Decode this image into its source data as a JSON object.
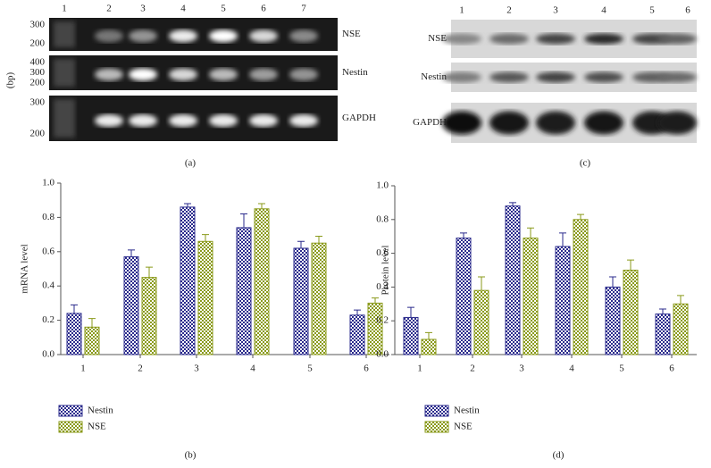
{
  "gel_a": {
    "lanes": [
      "1",
      "2",
      "3",
      "4",
      "5",
      "6",
      "7"
    ],
    "rows": [
      "NSE",
      "Nestin",
      "GAPDH"
    ],
    "markers": [
      [
        "300",
        "200"
      ],
      [
        "400",
        "300",
        "200"
      ],
      [
        "300",
        "200"
      ]
    ],
    "axis_label": "(bp)",
    "caption": "(a)"
  },
  "blot_c": {
    "lanes": [
      "1",
      "2",
      "3",
      "4",
      "5",
      "6"
    ],
    "rows": [
      "NSE",
      "Nestin",
      "GAPDH"
    ],
    "caption": "(c)"
  },
  "chart_data": [
    {
      "type": "bar",
      "ylabel": "mRNA level",
      "caption": "(b)",
      "categories": [
        "1",
        "2",
        "3",
        "4",
        "5",
        "6"
      ],
      "series": [
        {
          "name": "Nestin",
          "color": "#2b2b8c",
          "values": [
            0.24,
            0.57,
            0.86,
            0.74,
            0.62,
            0.23
          ],
          "errors": [
            0.05,
            0.04,
            0.02,
            0.08,
            0.04,
            0.03
          ]
        },
        {
          "name": "NSE",
          "color": "#8a9a1a",
          "values": [
            0.16,
            0.45,
            0.66,
            0.85,
            0.65,
            0.3
          ],
          "errors": [
            0.05,
            0.06,
            0.04,
            0.03,
            0.04,
            0.03
          ]
        }
      ],
      "ylim": [
        0,
        1
      ],
      "yticks": [
        {
          "value": 0,
          "label": "0.0"
        },
        0.2,
        0.4,
        0.6,
        0.8,
        {
          "value": 1,
          "label": "1.0"
        }
      ]
    },
    {
      "type": "bar",
      "ylabel": "Protein level",
      "caption": "(d)",
      "categories": [
        "1",
        "2",
        "3",
        "4",
        "5",
        "6"
      ],
      "series": [
        {
          "name": "Nestin",
          "color": "#2b2b8c",
          "values": [
            0.22,
            0.69,
            0.88,
            0.64,
            0.4,
            0.24
          ],
          "errors": [
            0.06,
            0.03,
            0.02,
            0.08,
            0.06,
            0.03
          ]
        },
        {
          "name": "NSE",
          "color": "#8a9a1a",
          "values": [
            0.09,
            0.38,
            0.69,
            0.8,
            0.5,
            0.3
          ],
          "errors": [
            0.04,
            0.08,
            0.06,
            0.03,
            0.06,
            0.05
          ]
        }
      ],
      "ylim": [
        0,
        1
      ],
      "yticks": [
        {
          "value": 0,
          "label": "0.0"
        },
        0.2,
        0.4,
        0.6,
        0.8,
        {
          "value": 1,
          "label": "1.0"
        }
      ]
    }
  ]
}
